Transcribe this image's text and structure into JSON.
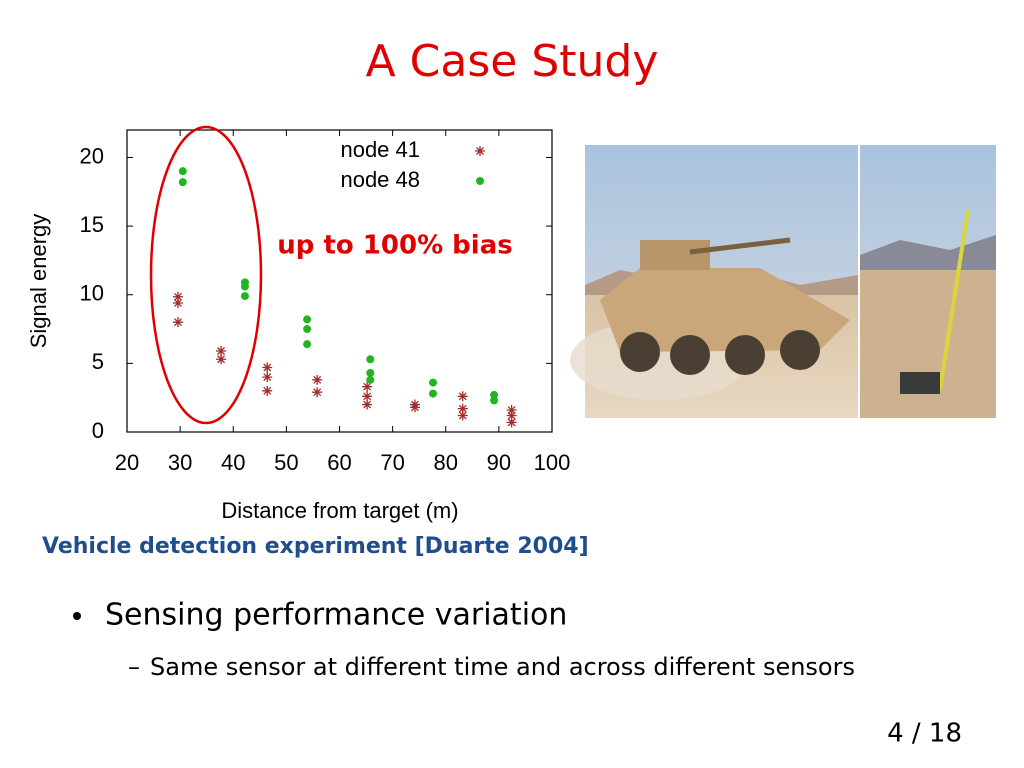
{
  "slide_title": "A Case Study",
  "chart_data": {
    "type": "scatter",
    "xlabel": "Distance from target (m)",
    "ylabel": "Signal energy",
    "xlim": [
      20,
      100
    ],
    "ylim": [
      0,
      22
    ],
    "xticks": [
      20,
      30,
      40,
      50,
      60,
      70,
      80,
      90,
      100
    ],
    "yticks": [
      0,
      5,
      10,
      15,
      20
    ],
    "legend": "upper right",
    "annotation": "up to 100% bias",
    "series": [
      {
        "name": "node 41",
        "color": "#a52a2a",
        "marker": "asterisk",
        "x": [
          29.6,
          29.6,
          29.6,
          37.7,
          37.7,
          46.4,
          46.4,
          46.4,
          55.8,
          55.8,
          65.2,
          65.2,
          65.2,
          74.2,
          74.2,
          83.2,
          83.2,
          83.2,
          92.4,
          92.4,
          92.4
        ],
        "values": [
          9.85,
          9.4,
          8.0,
          5.9,
          5.3,
          4.7,
          4.0,
          3.0,
          3.8,
          2.9,
          3.3,
          2.6,
          2.0,
          2.0,
          1.8,
          2.6,
          1.7,
          1.2,
          1.6,
          1.2,
          0.7
        ]
      },
      {
        "name": "node 48",
        "color": "#22b522",
        "marker": "circle",
        "x": [
          30.5,
          30.5,
          42.2,
          42.2,
          42.2,
          53.9,
          53.9,
          53.9,
          65.8,
          65.8,
          65.8,
          77.6,
          77.6,
          89.1,
          89.1
        ],
        "values": [
          19.0,
          18.2,
          10.9,
          10.6,
          9.9,
          8.2,
          7.5,
          6.4,
          5.3,
          4.3,
          3.8,
          3.6,
          2.8,
          2.7,
          2.3
        ]
      }
    ]
  },
  "caption": "Vehicle detection experiment [Duarte 2004]",
  "bullets": [
    {
      "text": "Sensing performance variation",
      "sub": [
        "Same sensor at different time and across different sensors"
      ]
    }
  ],
  "page_number": "4 / 18"
}
